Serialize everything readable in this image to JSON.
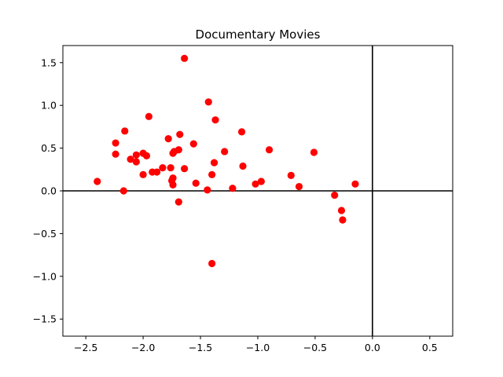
{
  "chart_data": {
    "type": "scatter",
    "title": "Documentary Movies",
    "xlabel": "",
    "ylabel": "",
    "xlim": [
      -2.7,
      0.7
    ],
    "ylim": [
      -1.7,
      1.7
    ],
    "xticks": [
      -2.5,
      -2.0,
      -1.5,
      -1.0,
      -0.5,
      0.0,
      0.5
    ],
    "xtick_labels": [
      "−2.5",
      "−2.0",
      "−1.5",
      "−1.0",
      "−0.5",
      "0.0",
      "0.5"
    ],
    "yticks": [
      -1.5,
      -1.0,
      -0.5,
      0.0,
      0.5,
      1.0,
      1.5
    ],
    "ytick_labels": [
      "−1.5",
      "−1.0",
      "−0.5",
      "0.0",
      "0.5",
      "1.0",
      "1.5"
    ],
    "reference_lines": {
      "x": 0.0,
      "y": 0.0
    },
    "grid": false,
    "marker_color": "#ff0000",
    "points": [
      [
        -1.64,
        1.55
      ],
      [
        -1.43,
        1.04
      ],
      [
        -1.95,
        0.87
      ],
      [
        -1.37,
        0.83
      ],
      [
        -2.16,
        0.7
      ],
      [
        -1.14,
        0.69
      ],
      [
        -1.68,
        0.66
      ],
      [
        -1.78,
        0.61
      ],
      [
        -2.24,
        0.56
      ],
      [
        -1.56,
        0.55
      ],
      [
        -1.69,
        0.48
      ],
      [
        -0.9,
        0.48
      ],
      [
        -1.73,
        0.46
      ],
      [
        -1.29,
        0.46
      ],
      [
        -1.74,
        0.44
      ],
      [
        -0.51,
        0.45
      ],
      [
        -2.24,
        0.43
      ],
      [
        -2.0,
        0.44
      ],
      [
        -2.06,
        0.42
      ],
      [
        -1.97,
        0.41
      ],
      [
        -2.11,
        0.37
      ],
      [
        -2.06,
        0.34
      ],
      [
        -1.38,
        0.33
      ],
      [
        -1.13,
        0.29
      ],
      [
        -1.83,
        0.27
      ],
      [
        -1.76,
        0.27
      ],
      [
        -1.64,
        0.26
      ],
      [
        -1.92,
        0.22
      ],
      [
        -1.88,
        0.22
      ],
      [
        -2.0,
        0.19
      ],
      [
        -1.4,
        0.19
      ],
      [
        -0.71,
        0.18
      ],
      [
        -1.74,
        0.15
      ],
      [
        -1.75,
        0.12
      ],
      [
        -0.97,
        0.11
      ],
      [
        -2.4,
        0.11
      ],
      [
        -1.54,
        0.09
      ],
      [
        -1.02,
        0.08
      ],
      [
        -0.15,
        0.08
      ],
      [
        -1.74,
        0.07
      ],
      [
        -0.64,
        0.05
      ],
      [
        -1.22,
        0.03
      ],
      [
        -1.44,
        0.01
      ],
      [
        -2.17,
        0.0
      ],
      [
        -0.33,
        -0.05
      ],
      [
        -1.69,
        -0.13
      ],
      [
        -0.27,
        -0.23
      ],
      [
        -0.26,
        -0.34
      ],
      [
        -1.4,
        -0.85
      ]
    ]
  }
}
